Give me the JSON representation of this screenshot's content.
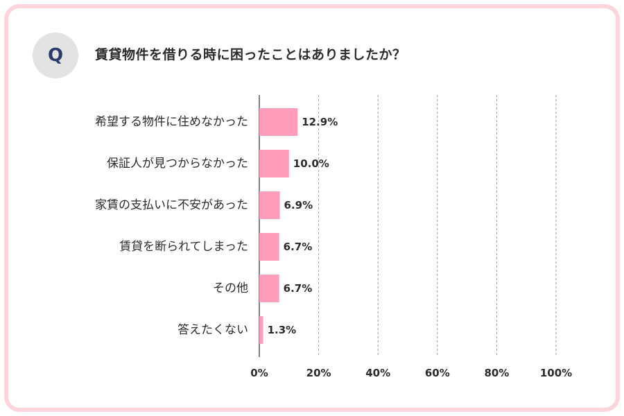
{
  "header": {
    "badge": "Q",
    "question": "賃貸物件を借りる時に困ったことはありましたか？"
  },
  "colors": {
    "frame": "#fcd4dc",
    "bar": "#ff9dbb",
    "badge_bg": "#e3e3e3",
    "badge_text": "#2b3a6b",
    "grid": "#9a9a9a"
  },
  "chart_data": {
    "type": "bar",
    "orientation": "horizontal",
    "categories": [
      "希望する物件に住めなかった",
      "保証人が見つからなかった",
      "家賃の支払いに不安があった",
      "賃貸を断られてしまった",
      "その他",
      "答えたくない"
    ],
    "values": [
      12.9,
      10.0,
      6.9,
      6.7,
      6.7,
      1.3
    ],
    "value_labels": [
      "12.9%",
      "10.0%",
      "6.9%",
      "6.7%",
      "6.7%",
      "1.3%"
    ],
    "xlim": [
      0,
      100
    ],
    "xticks": [
      0,
      20,
      40,
      60,
      80,
      100
    ],
    "xtick_labels": [
      "0%",
      "20%",
      "40%",
      "60%",
      "80%",
      "100%"
    ],
    "grid": true,
    "legend": false
  }
}
